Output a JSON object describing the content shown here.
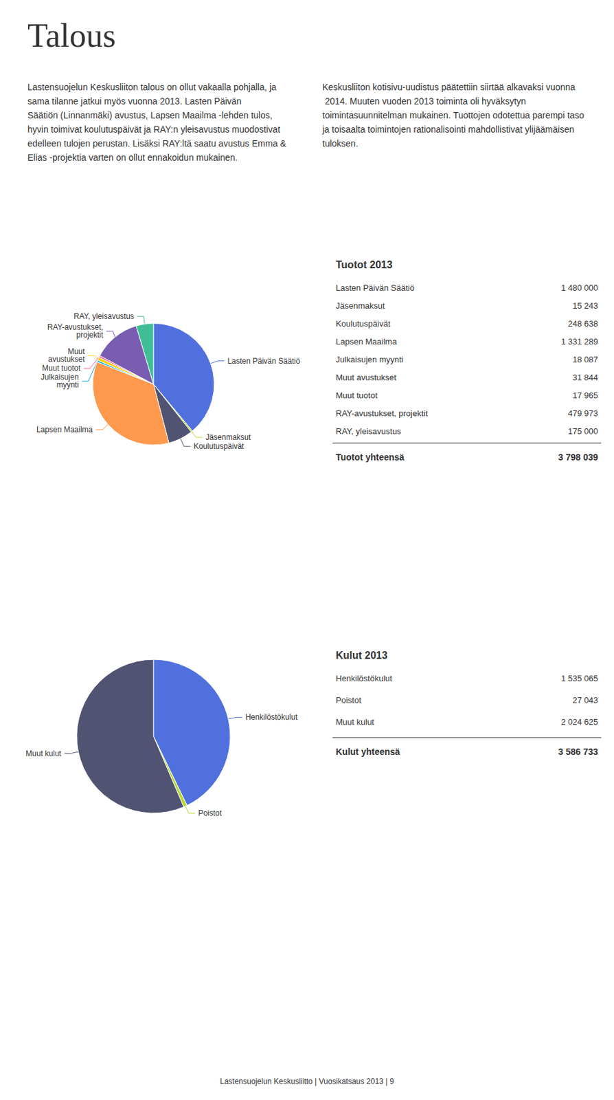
{
  "title": "Talous",
  "annotations": [
    "Lastensuojelun Keskusliiton talous on ollut vakaalla pohjalla, ja sama tilanne jatkui myös vuonna 2013. Lasten Päivän Säätiön (Linnanmäki) avustus, Lapsen Maailma -lehden tulos, hyvin toimivat koulutuspäivät ja RAY:n yleisavustus muodostivat edelleen tulojen perustan. Lisäksi RAY:ltä saatu avustus Emma & Elias -projektia varten on ollut ennakoidun mukainen.",
    "Keskusliiton kotisivu-uudistus päätettiin siirtää alkavaksi vuonna 2014. Muuten vuoden 2013 toiminta oli hyväksytyn toimintasuunnitelman mukainen. Tuottojen odotettua parempi taso ja toisaalta toimintojen rationalisointi mahdollistivat ylijäämäisen tuloksen."
  ],
  "footer": "Lastensuojelun Keskusliitto | Vuosikatsaus 2013 | 9",
  "chart_data": [
    {
      "type": "pie",
      "title": "Tuotot 2013",
      "categories": [
        "Lasten Päivän Säätiö",
        "Jäsenmaksut",
        "Koulutuspäivät",
        "Lapsen Maailma",
        "Julkaisujen\nmyynti",
        "Muut\navustukset",
        "Muut tuotot",
        "RAY-avustukset,\nprojektit",
        "RAY, yleisavustus"
      ],
      "row_labels": [
        "Lasten Päivän Säätiö",
        "Jäsenmaksut",
        "Koulutuspäivät",
        "Lapsen Maailma",
        "Julkaisujen myynti",
        "Muut avustukset",
        "Muut tuotot",
        "RAY-avustukset, projektit",
        "RAY, yleisavustus"
      ],
      "values": [
        1480000,
        15243,
        248638,
        1331289,
        18087,
        31844,
        17965,
        479973,
        175000
      ],
      "value_labels": [
        "1 480 000",
        "15 243",
        "248 638",
        "1 331 289",
        "18 087",
        "31 844",
        "17 965",
        "479 973",
        "175 000"
      ],
      "total_label": "Tuotot yhteensä",
      "total": 3798039,
      "total_value_label": "3 798 039"
    },
    {
      "type": "pie",
      "title": "Kulut 2013",
      "categories": [
        "Henkilöstökulut",
        "Poistot",
        "Muut kulut"
      ],
      "row_labels": [
        "Henkilöstökulut",
        "Poistot",
        "Muut kulut"
      ],
      "values": [
        1535065,
        27043,
        2024625
      ],
      "value_labels": [
        "1 535 065",
        "27 043",
        "2 024 625"
      ],
      "total_label": "Kulut yhteensä",
      "total": 3586733,
      "total_value_label": "3 586 733"
    }
  ]
}
